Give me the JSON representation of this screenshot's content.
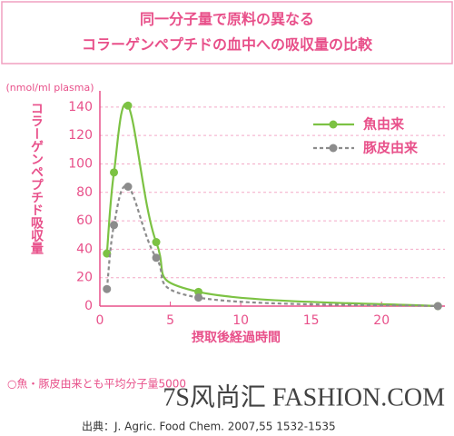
{
  "chart_data": {
    "type": "line",
    "title_lines": [
      "同一分子量で原料の異なる",
      "コラーゲンペプチドの血中への吸収量の比較"
    ],
    "y_unit": "(nmol/ml plasma)",
    "ylabel": "コラーゲンペプチド吸収量",
    "xlabel": "摂取後経過時間",
    "x": [
      0.5,
      1,
      2,
      4,
      7,
      24
    ],
    "series": [
      {
        "name": "魚由来",
        "color": "#7cc243",
        "dash": false,
        "values": [
          37,
          94,
          141,
          45,
          10,
          0
        ]
      },
      {
        "name": "豚皮由来",
        "color": "#8c8c8c",
        "dash": true,
        "values": [
          12,
          57,
          84,
          34,
          6,
          0
        ]
      }
    ],
    "xlim": [
      0,
      24.5
    ],
    "ylim": [
      0,
      145
    ],
    "xticks": [
      0,
      5,
      10,
      15,
      20
    ],
    "yticks": [
      0,
      20,
      40,
      60,
      80,
      100,
      120,
      140
    ],
    "grid": true,
    "legend": "upper right",
    "notes": [
      "○魚・豚皮由来とも平均分子量5000",
      "出典：J. Agric. Food Chem. 2007,55 1532-1535"
    ],
    "watermark": "7S风尚汇 FASHION.COM"
  }
}
